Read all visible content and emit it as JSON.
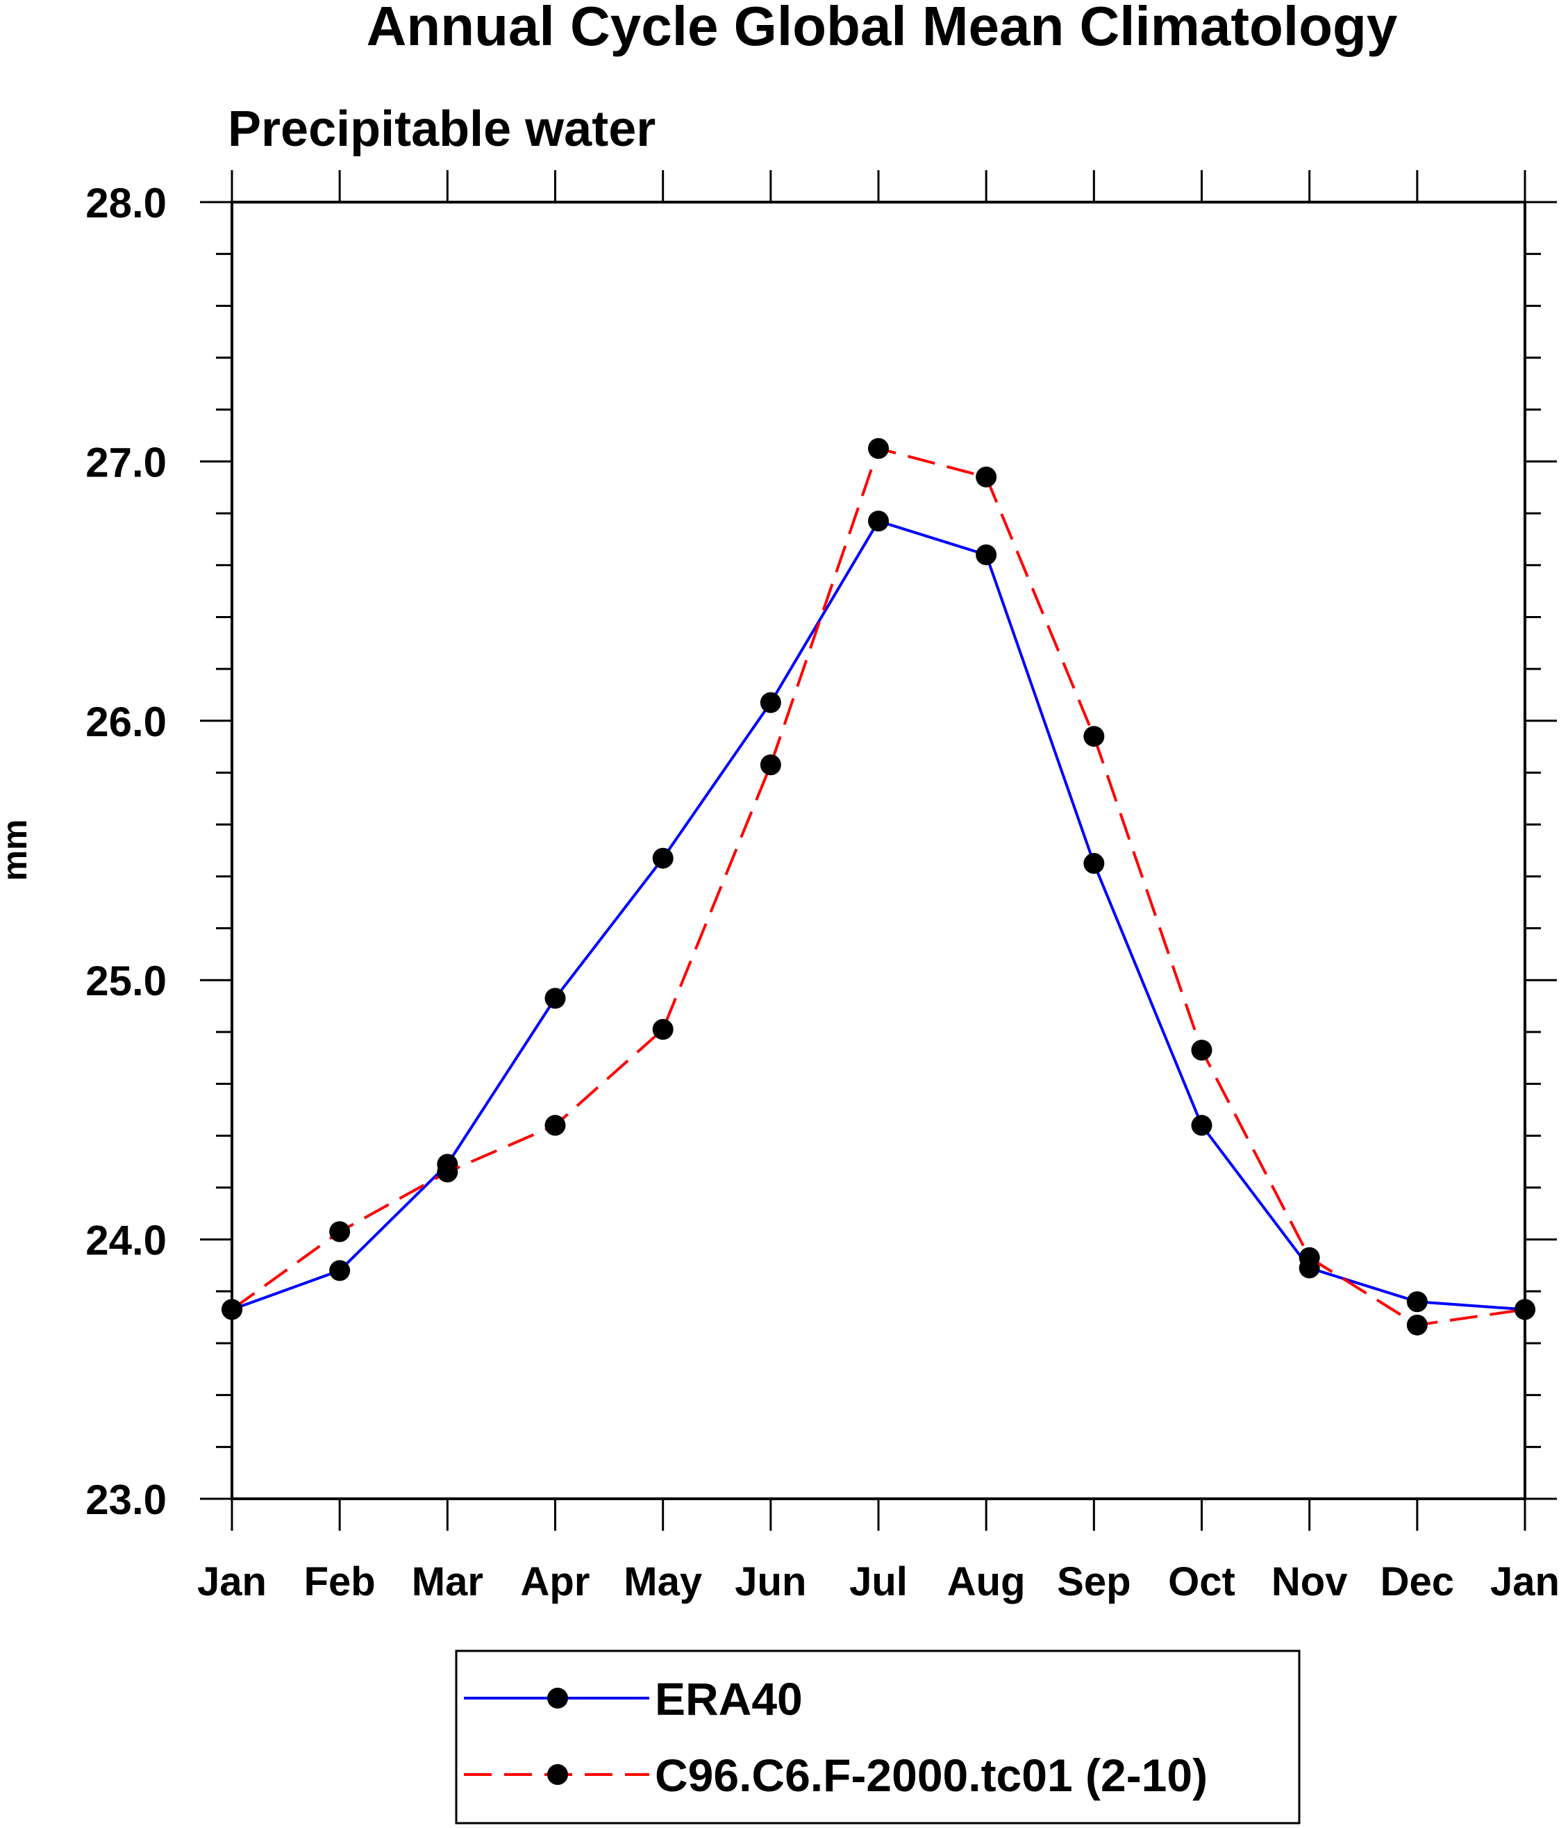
{
  "chart_data": {
    "type": "line",
    "title": "Annual Cycle Global Mean Climatology",
    "subtitle": "Precipitable water",
    "xlabel": "",
    "ylabel": "mm",
    "categories": [
      "Jan",
      "Feb",
      "Mar",
      "Apr",
      "May",
      "Jun",
      "Jul",
      "Aug",
      "Sep",
      "Oct",
      "Nov",
      "Dec",
      "Jan"
    ],
    "ylim": [
      23.0,
      28.0
    ],
    "yticks": [
      "23.0",
      "24.0",
      "25.0",
      "26.0",
      "27.0",
      "28.0"
    ],
    "grid": false,
    "legend_position": "bottom",
    "series": [
      {
        "name": "ERA40",
        "color": "#0000ff",
        "line_style": "solid",
        "marker": "filled-circle",
        "values": [
          23.73,
          23.88,
          24.29,
          24.93,
          25.47,
          26.07,
          26.77,
          26.64,
          25.45,
          24.44,
          23.89,
          23.76,
          23.73
        ]
      },
      {
        "name": "C96.C6.F-2000.tc01 (2-10)",
        "color": "#ff0000",
        "line_style": "dashed",
        "marker": "filled-circle",
        "values": [
          23.73,
          24.03,
          24.26,
          24.44,
          24.81,
          25.83,
          27.05,
          26.94,
          25.94,
          24.73,
          23.93,
          23.67,
          23.73
        ]
      }
    ]
  }
}
